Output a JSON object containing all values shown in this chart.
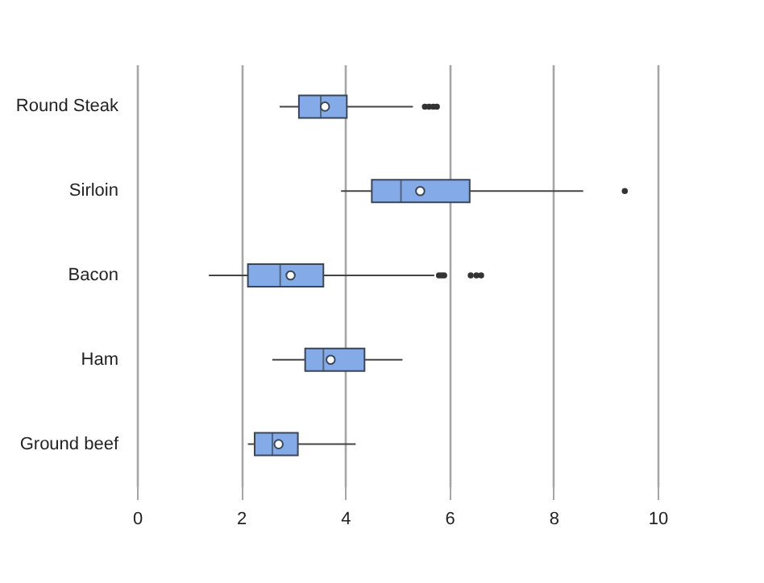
{
  "chart_data": {
    "type": "box",
    "orientation": "horizontal",
    "categories": [
      "Round Steak",
      "Sirloin",
      "Bacon",
      "Ham",
      "Ground beef"
    ],
    "xlim": [
      0,
      10
    ],
    "xticks": [
      0,
      2,
      4,
      6,
      8,
      10
    ],
    "grid": "x",
    "series": [
      {
        "color": "#84abe8",
        "boxes": [
          {
            "low": 2.74,
            "q1": 3.11,
            "median": 3.53,
            "q3": 4.03,
            "high": 5.3,
            "mean": 3.61,
            "outliers": [
              5.53,
              5.61,
              5.69,
              5.76
            ]
          },
          {
            "low": 3.92,
            "q1": 4.51,
            "median": 5.07,
            "q3": 6.39,
            "high": 8.57,
            "mean": 5.44,
            "outliers": [
              9.37
            ]
          },
          {
            "low": 1.38,
            "q1": 2.13,
            "median": 2.75,
            "q3": 3.58,
            "high": 5.71,
            "mean": 2.95,
            "outliers": [
              5.8,
              5.85,
              5.9,
              6.41,
              6.52,
              6.61
            ]
          },
          {
            "low": 2.6,
            "q1": 3.23,
            "median": 3.58,
            "q3": 4.37,
            "high": 5.1,
            "mean": 3.72
          },
          {
            "low": 2.13,
            "q1": 2.26,
            "median": 2.6,
            "q3": 3.09,
            "high": 4.2,
            "mean": 2.72
          }
        ]
      }
    ]
  }
}
